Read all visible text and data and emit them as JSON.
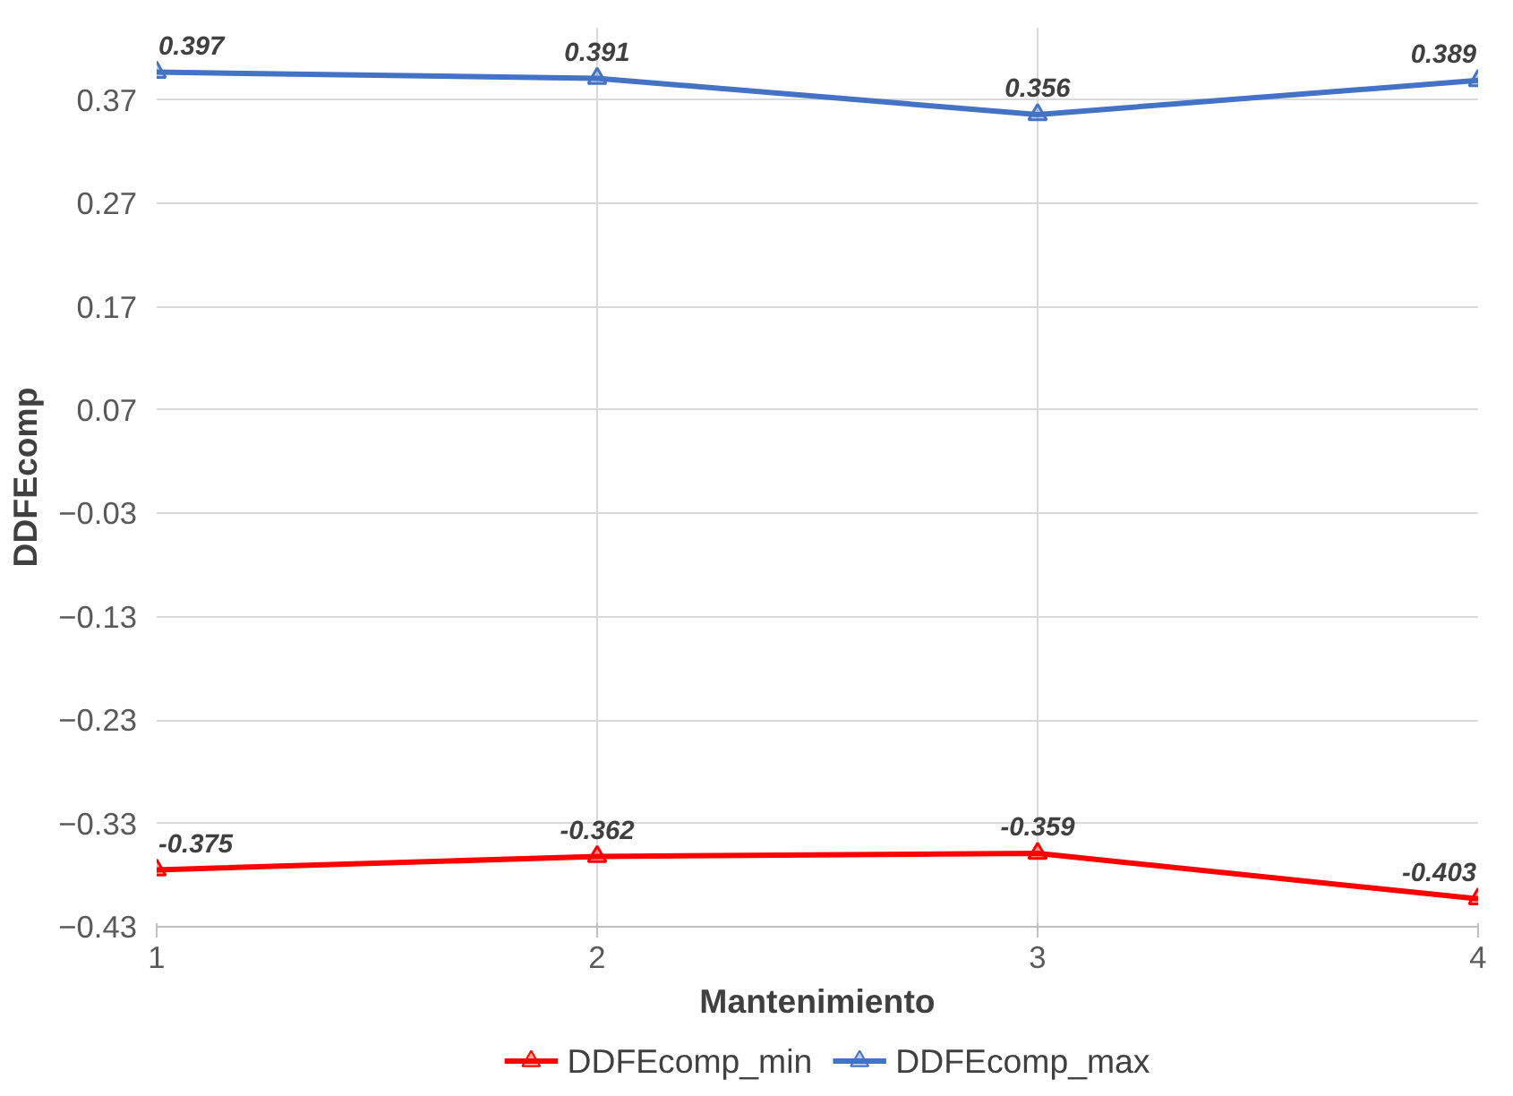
{
  "chart_data": {
    "type": "line",
    "xlabel": "Mantenimiento",
    "ylabel": "DDFEcomp",
    "x": [
      1,
      2,
      3,
      4
    ],
    "series": [
      {
        "name": "DDFEcomp_min",
        "color": "#ff0000",
        "values": [
          -0.375,
          -0.362,
          -0.359,
          -0.403
        ]
      },
      {
        "name": "DDFEcomp_max",
        "color": "#4472c4",
        "values": [
          0.397,
          0.391,
          0.356,
          0.389
        ]
      }
    ],
    "xlim": [
      1,
      4
    ],
    "xticks": [
      1,
      2,
      3,
      4
    ],
    "ylim": [
      -0.43,
      0.44
    ],
    "yticks": [
      -0.43,
      -0.33,
      -0.23,
      -0.13,
      -0.03,
      0.07,
      0.17,
      0.27,
      0.37
    ],
    "grid": true,
    "legend": "bottom",
    "marker": "triangle",
    "line_style": "solid",
    "data_labels": true
  }
}
